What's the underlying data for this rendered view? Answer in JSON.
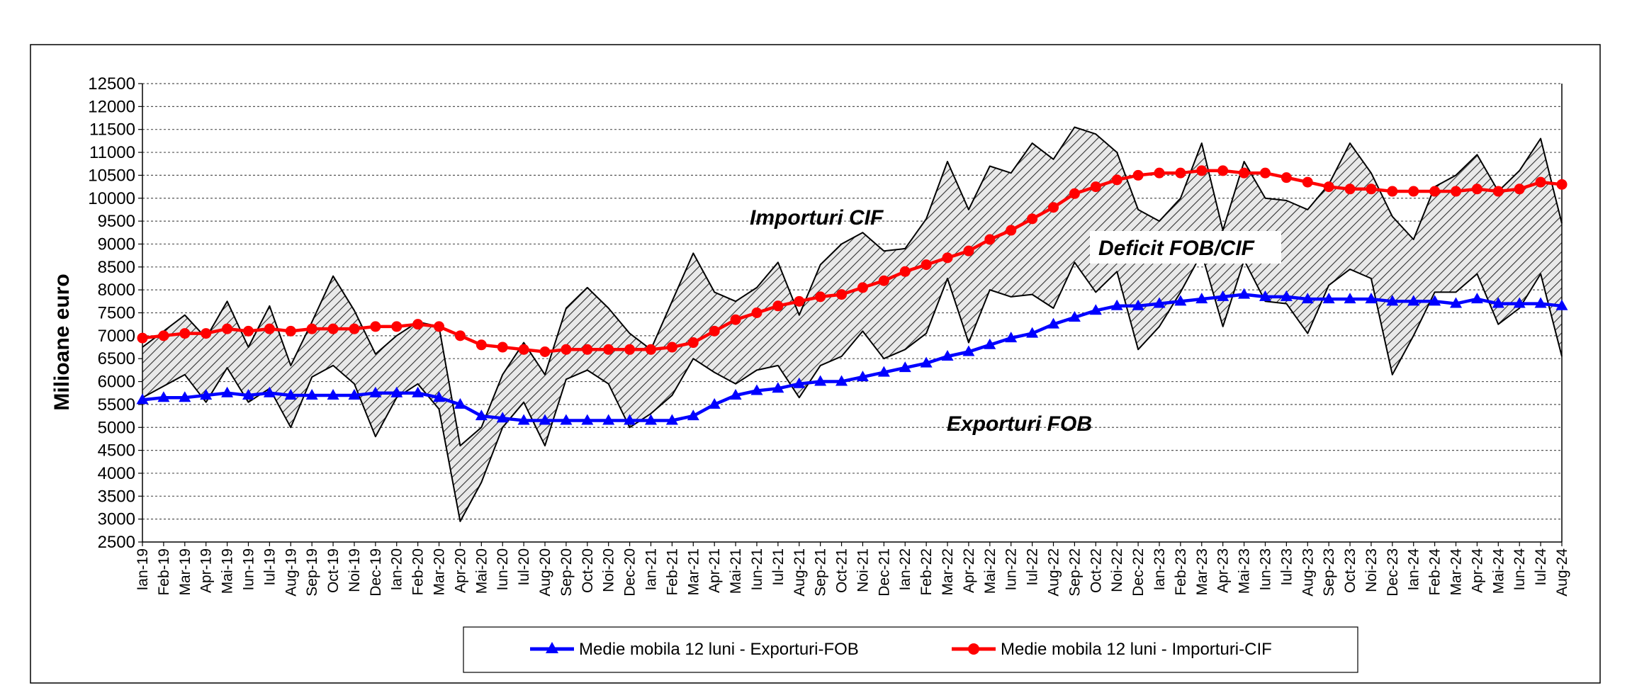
{
  "chart_data": {
    "type": "line",
    "ylabel": "Milioane  euro",
    "ylim": [
      2500,
      12500
    ],
    "ytick_step": 500,
    "grid": true,
    "legend_placement": "bottom-center",
    "fill_between": "Importuri CIF and Exporturi FOB monthly series (hatched area = deficit)",
    "categories": [
      "Ian-19",
      "Feb-19",
      "Mar-19",
      "Apr-19",
      "Mai-19",
      "Iun-19",
      "Iul-19",
      "Aug-19",
      "Sep-19",
      "Oct-19",
      "Noi-19",
      "Dec-19",
      "Ian-20",
      "Feb-20",
      "Mar-20",
      "Apr-20",
      "Mai-20",
      "Iun-20",
      "Iul-20",
      "Aug-20",
      "Sep-20",
      "Oct-20",
      "Noi-20",
      "Dec-20",
      "Ian-21",
      "Feb-21",
      "Mar-21",
      "Apr-21",
      "Mai-21",
      "Iun-21",
      "Iul-21",
      "Aug-21",
      "Sep-21",
      "Oct-21",
      "Noi-21",
      "Dec-21",
      "Ian-22",
      "Feb-22",
      "Mar-22",
      "Apr-22",
      "Mai-22",
      "Iun-22",
      "Iul-22",
      "Aug-22",
      "Sep-22",
      "Oct-22",
      "Noi-22",
      "Dec-22",
      "Ian-23",
      "Feb-23",
      "Mar-23",
      "Apr-23",
      "Mai-23",
      "Iun-23",
      "Iul-23",
      "Aug-23",
      "Sep-23",
      "Oct-23",
      "Noi-23",
      "Dec-23",
      "Ian-24",
      "Feb-24",
      "Mar-24",
      "Apr-24",
      "Mai-24",
      "Iun-24",
      "Iul-24",
      "Aug-24"
    ],
    "series": [
      {
        "name": "Importuri CIF",
        "color": "#000000",
        "values": [
          6750,
          7100,
          7450,
          6950,
          7750,
          6750,
          7650,
          6350,
          7300,
          8300,
          7550,
          6600,
          7000,
          7300,
          7200,
          4600,
          5000,
          6150,
          6850,
          6150,
          7600,
          8050,
          7600,
          7050,
          6700,
          7750,
          8800,
          7950,
          7750,
          8050,
          8600,
          7450,
          8550,
          9000,
          9250,
          8850,
          8900,
          9550,
          10800,
          9750,
          10700,
          10550,
          11200,
          10850,
          11550,
          11400,
          11000,
          9750,
          9500,
          10000,
          11200,
          9300,
          10800,
          10000,
          9950,
          9750,
          10300,
          11200,
          10550,
          9600,
          9100,
          10250,
          10500,
          10950,
          10150,
          10600,
          11300,
          9450
        ]
      },
      {
        "name": "Exporturi FOB",
        "color": "#000000",
        "values": [
          5650,
          5900,
          6150,
          5550,
          6300,
          5550,
          5850,
          5000,
          6100,
          6350,
          5950,
          4800,
          5650,
          5950,
          5400,
          2950,
          3800,
          5000,
          5550,
          4600,
          6050,
          6250,
          5950,
          5000,
          5300,
          5700,
          6500,
          6200,
          5950,
          6250,
          6350,
          5650,
          6350,
          6550,
          7100,
          6500,
          6700,
          7050,
          8250,
          6850,
          8000,
          7850,
          7900,
          7600,
          8600,
          7950,
          8400,
          6700,
          7200,
          7950,
          8800,
          7200,
          8650,
          7750,
          7700,
          7050,
          8100,
          8450,
          8250,
          6150,
          7000,
          7950,
          7950,
          8350,
          7250,
          7600,
          8350,
          6550
        ]
      },
      {
        "name": "Medie mobila 12 luni - Exporturi-FOB",
        "color": "#0000ff",
        "values": [
          5600,
          5650,
          5650,
          5700,
          5750,
          5700,
          5750,
          5700,
          5700,
          5700,
          5700,
          5750,
          5750,
          5750,
          5650,
          5500,
          5250,
          5200,
          5150,
          5150,
          5150,
          5150,
          5150,
          5150,
          5150,
          5150,
          5250,
          5500,
          5700,
          5800,
          5850,
          5950,
          6000,
          6000,
          6100,
          6200,
          6300,
          6400,
          6550,
          6650,
          6800,
          6950,
          7050,
          7250,
          7400,
          7550,
          7650,
          7650,
          7700,
          7750,
          7800,
          7850,
          7900,
          7850,
          7850,
          7800,
          7800,
          7800,
          7800,
          7750,
          7750,
          7750,
          7700,
          7800,
          7700,
          7700,
          7700,
          7650
        ]
      },
      {
        "name": "Medie mobila 12 luni - Importuri-CIF",
        "color": "#ff0000",
        "values": [
          6950,
          7000,
          7050,
          7050,
          7150,
          7100,
          7150,
          7100,
          7150,
          7150,
          7150,
          7200,
          7200,
          7250,
          7200,
          7000,
          6800,
          6750,
          6700,
          6650,
          6700,
          6700,
          6700,
          6700,
          6700,
          6750,
          6850,
          7100,
          7350,
          7500,
          7650,
          7750,
          7850,
          7900,
          8050,
          8200,
          8400,
          8550,
          8700,
          8850,
          9100,
          9300,
          9550,
          9800,
          10100,
          10250,
          10400,
          10500,
          10550,
          10550,
          10600,
          10600,
          10550,
          10550,
          10450,
          10350,
          10250,
          10200,
          10200,
          10150,
          10150,
          10150,
          10150,
          10200,
          10150,
          10200,
          10350,
          10300
        ]
      }
    ],
    "annotations": [
      "Importuri CIF",
      "Deficit FOB/CIF",
      "Exporturi FOB"
    ]
  }
}
